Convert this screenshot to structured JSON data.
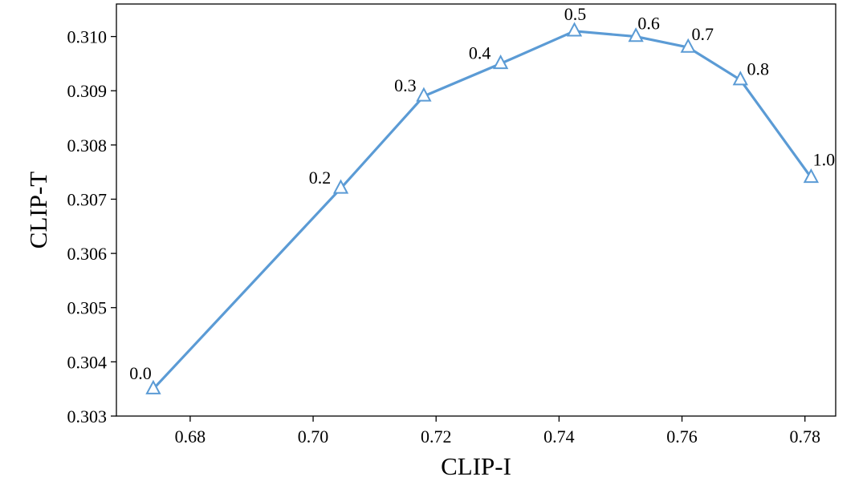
{
  "chart_data": {
    "type": "line",
    "title": "",
    "xlabel": "CLIP-I",
    "ylabel": "CLIP-T",
    "xlim": [
      0.668,
      0.785
    ],
    "ylim": [
      0.303,
      0.3106
    ],
    "grid": false,
    "marker": "triangle-open",
    "color": "#5b9bd5",
    "x_ticks": [
      0.68,
      0.7,
      0.72,
      0.74,
      0.76,
      0.78
    ],
    "x_tick_labels": [
      "0.68",
      "0.70",
      "0.72",
      "0.74",
      "0.76",
      "0.78"
    ],
    "y_ticks": [
      0.303,
      0.304,
      0.305,
      0.306,
      0.307,
      0.308,
      0.309,
      0.31
    ],
    "y_tick_labels": [
      "0.303",
      "0.304",
      "0.305",
      "0.306",
      "0.307",
      "0.308",
      "0.309",
      "0.310"
    ],
    "series": [
      {
        "points": [
          {
            "x": 0.674,
            "y": 0.3035,
            "label": "0.0"
          },
          {
            "x": 0.7045,
            "y": 0.3072,
            "label": "0.2"
          },
          {
            "x": 0.718,
            "y": 0.3089,
            "label": "0.3"
          },
          {
            "x": 0.7305,
            "y": 0.3095,
            "label": "0.4"
          },
          {
            "x": 0.7425,
            "y": 0.3101,
            "label": "0.5"
          },
          {
            "x": 0.7525,
            "y": 0.31,
            "label": "0.6"
          },
          {
            "x": 0.761,
            "y": 0.3098,
            "label": "0.7"
          },
          {
            "x": 0.7695,
            "y": 0.3092,
            "label": "0.8"
          },
          {
            "x": 0.781,
            "y": 0.3074,
            "label": "1.0"
          }
        ]
      }
    ]
  }
}
